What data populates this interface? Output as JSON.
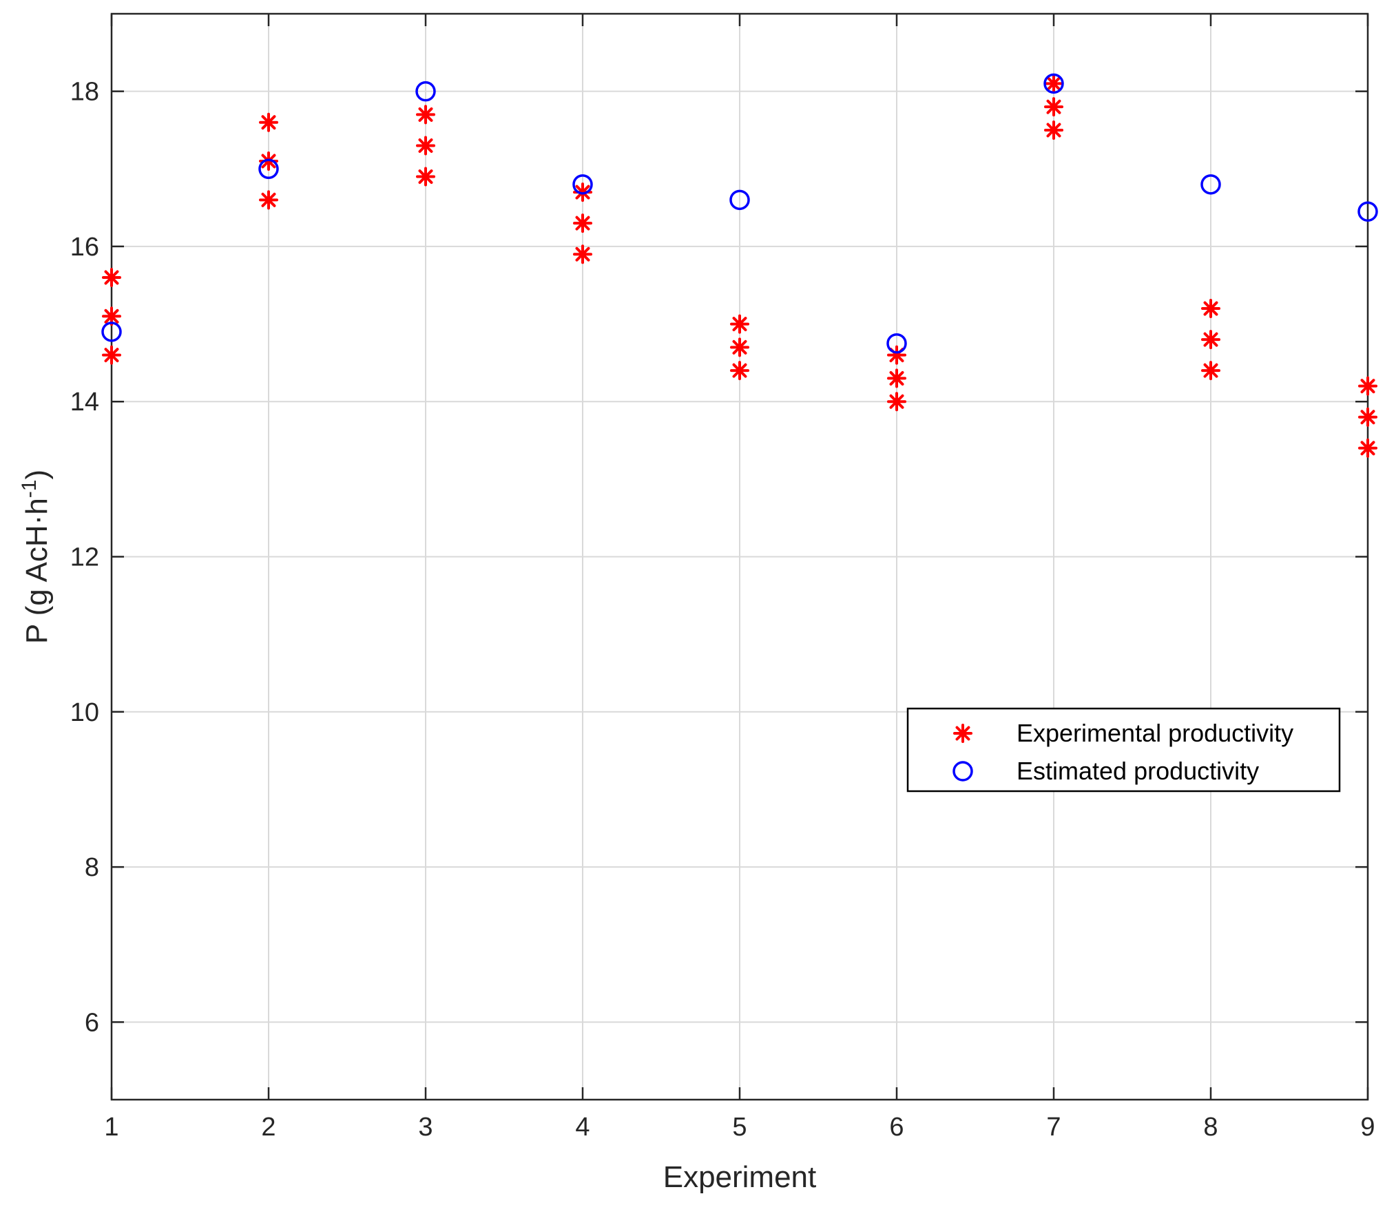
{
  "chart_data": {
    "type": "scatter",
    "title": "",
    "xlabel": "Experiment",
    "ylabel_main": "P (g AcH·h",
    "ylabel_sup": "-1",
    "ylabel_close": ")",
    "xlim": [
      1,
      9
    ],
    "ylim": [
      5,
      19
    ],
    "xticks": [
      1,
      2,
      3,
      4,
      5,
      6,
      7,
      8,
      9
    ],
    "yticks": [
      6,
      8,
      10,
      12,
      14,
      16,
      18
    ],
    "grid": true,
    "legend_position": "center-right",
    "series": [
      {
        "name": "Experimental productivity",
        "marker": "asterisk",
        "color": "#ff0000",
        "points": [
          {
            "x": 1,
            "y": 15.6
          },
          {
            "x": 1,
            "y": 15.1
          },
          {
            "x": 1,
            "y": 14.6
          },
          {
            "x": 2,
            "y": 17.6
          },
          {
            "x": 2,
            "y": 17.1
          },
          {
            "x": 2,
            "y": 16.6
          },
          {
            "x": 3,
            "y": 17.7
          },
          {
            "x": 3,
            "y": 17.3
          },
          {
            "x": 3,
            "y": 16.9
          },
          {
            "x": 4,
            "y": 16.7
          },
          {
            "x": 4,
            "y": 16.3
          },
          {
            "x": 4,
            "y": 15.9
          },
          {
            "x": 5,
            "y": 15.0
          },
          {
            "x": 5,
            "y": 14.7
          },
          {
            "x": 5,
            "y": 14.4
          },
          {
            "x": 6,
            "y": 14.6
          },
          {
            "x": 6,
            "y": 14.3
          },
          {
            "x": 6,
            "y": 14.0
          },
          {
            "x": 7,
            "y": 18.1
          },
          {
            "x": 7,
            "y": 17.8
          },
          {
            "x": 7,
            "y": 17.5
          },
          {
            "x": 8,
            "y": 15.2
          },
          {
            "x": 8,
            "y": 14.8
          },
          {
            "x": 8,
            "y": 14.4
          },
          {
            "x": 9,
            "y": 14.2
          },
          {
            "x": 9,
            "y": 13.8
          },
          {
            "x": 9,
            "y": 13.4
          }
        ]
      },
      {
        "name": "Estimated productivity",
        "marker": "circle",
        "color": "#0000ff",
        "points": [
          {
            "x": 1,
            "y": 14.9
          },
          {
            "x": 2,
            "y": 17.0
          },
          {
            "x": 3,
            "y": 18.0
          },
          {
            "x": 4,
            "y": 16.8
          },
          {
            "x": 5,
            "y": 16.6
          },
          {
            "x": 6,
            "y": 14.75
          },
          {
            "x": 7,
            "y": 18.1
          },
          {
            "x": 8,
            "y": 16.8
          },
          {
            "x": 9,
            "y": 16.45
          }
        ]
      }
    ]
  }
}
